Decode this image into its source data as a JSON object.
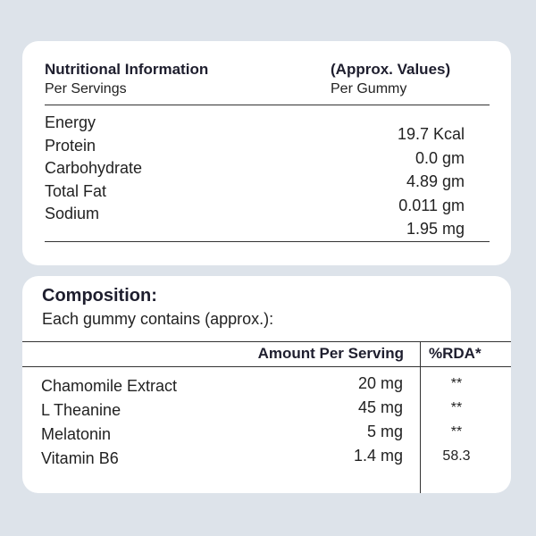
{
  "nutrition": {
    "title": "Nutritional Information",
    "subtitle": "Per Servings",
    "values_title": "(Approx. Values)",
    "values_subtitle": "Per Gummy",
    "rows": [
      {
        "label": "Energy",
        "value": "19.7 Kcal"
      },
      {
        "label": "Protein",
        "value": "0.0 gm"
      },
      {
        "label": "Carbohydrate",
        "value": "4.89 gm"
      },
      {
        "label": "Total Fat",
        "value": "0.011 gm"
      },
      {
        "label": "Sodium",
        "value": "1.95 mg"
      }
    ]
  },
  "composition": {
    "title": "Composition:",
    "subtitle": "Each gummy contains (approx.):",
    "col_amount": "Amount Per Serving",
    "col_rda": "%RDA*",
    "rows": [
      {
        "name": "Chamomile Extract",
        "amount": "20 mg",
        "rda": "**"
      },
      {
        "name": "L Theanine",
        "amount": "45 mg",
        "rda": "**"
      },
      {
        "name": "Melatonin",
        "amount": "5 mg",
        "rda": "**"
      },
      {
        "name": "Vitamin B6",
        "amount": "1.4 mg",
        "rda": "58.3"
      }
    ]
  }
}
